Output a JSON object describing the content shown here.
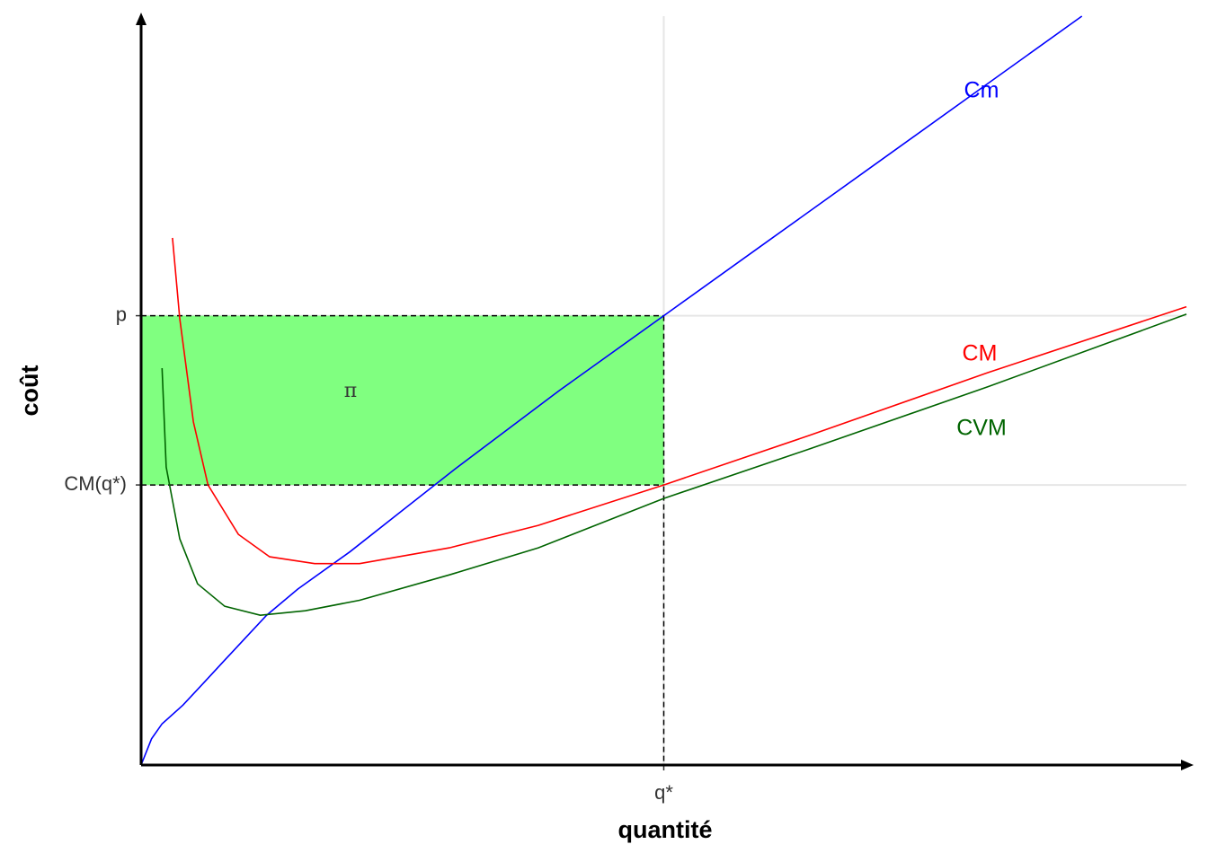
{
  "chart_data": {
    "type": "line",
    "x_label": "quantité",
    "y_label": "coût",
    "xlim": [
      0,
      100
    ],
    "ylim": [
      0,
      100
    ],
    "xticks": [
      {
        "value": 50,
        "label": "q*"
      }
    ],
    "yticks": [
      {
        "value": 37.4,
        "label": "CM(q*)"
      },
      {
        "value": 60,
        "label": "p"
      }
    ],
    "grid": true,
    "annotation": "π",
    "profit_color": "#80ff80",
    "series": [
      {
        "name": "Cm",
        "color": "#0000ff",
        "x": [
          0,
          1,
          2,
          4,
          6,
          8,
          10,
          12,
          15,
          20,
          25,
          30,
          40,
          50,
          60,
          70,
          80,
          90
        ],
        "values": [
          0,
          3.5,
          5.5,
          8,
          11,
          14,
          17,
          20,
          23.5,
          28.5,
          34,
          39.5,
          50,
          60,
          70,
          80,
          90,
          100
        ]
      },
      {
        "name": "CM",
        "color": "#ff0000",
        "x": [
          3,
          3.7,
          5,
          6.4,
          9.3,
          12.3,
          16.6,
          20.9,
          29.5,
          38,
          50,
          63.9,
          81,
          100
        ],
        "values": [
          70.4,
          59.6,
          45.8,
          37.4,
          30.8,
          27.8,
          26.9,
          26.9,
          29,
          32,
          37.4,
          44,
          52.4,
          61.2
        ]
      },
      {
        "name": "CVM",
        "color": "#006400",
        "x": [
          2,
          2.4,
          3.7,
          5.4,
          8,
          11.4,
          15.7,
          20.9,
          29.5,
          38,
          50,
          63.9,
          81,
          100
        ],
        "values": [
          53,
          39.8,
          30.2,
          24.2,
          21.2,
          20,
          20.6,
          22,
          25.4,
          29,
          35.6,
          42.2,
          50.5,
          60.2
        ]
      }
    ]
  }
}
